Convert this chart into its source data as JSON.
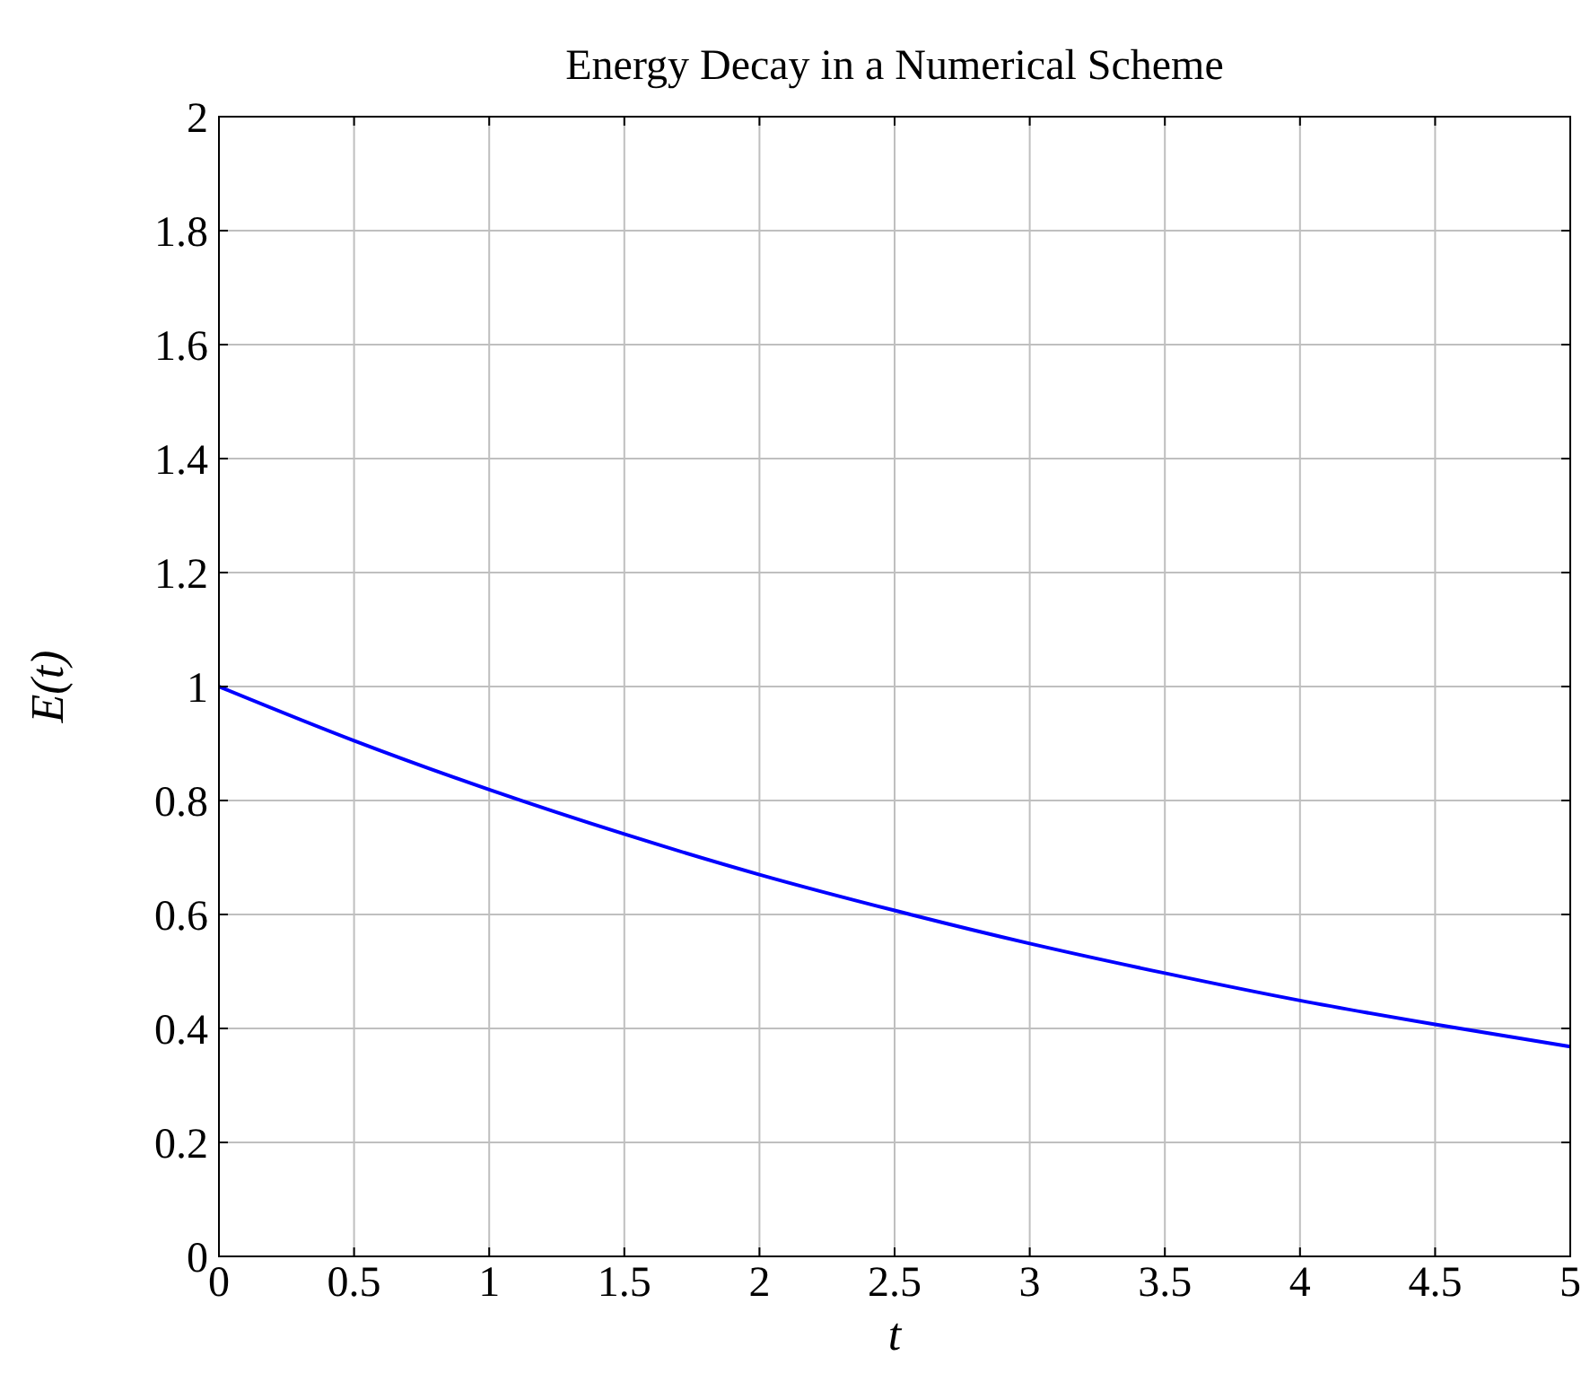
{
  "chart_data": {
    "type": "line",
    "title": "Energy Decay in a Numerical Scheme",
    "xlabel": "t",
    "ylabel": "E(t)",
    "x": [
      0,
      0.5,
      1,
      1.5,
      2,
      2.5,
      3,
      3.5,
      4,
      4.5,
      5
    ],
    "series": [
      {
        "color": "#0000ff",
        "values": [
          1,
          0.905,
          0.819,
          0.741,
          0.67,
          0.607,
          0.549,
          0.497,
          0.449,
          0.407,
          0.368
        ]
      }
    ],
    "xlim": [
      0,
      5
    ],
    "xticks": [
      0,
      0.5,
      1,
      1.5,
      2,
      2.5,
      3,
      3.5,
      4,
      4.5,
      5
    ],
    "ylim": [
      0,
      2
    ],
    "yticks": [
      0,
      0.2,
      0.4,
      0.6,
      0.8,
      1,
      1.2,
      1.4,
      1.6,
      1.8,
      2
    ],
    "grid": true,
    "marker": "none",
    "line_style": "solid"
  }
}
